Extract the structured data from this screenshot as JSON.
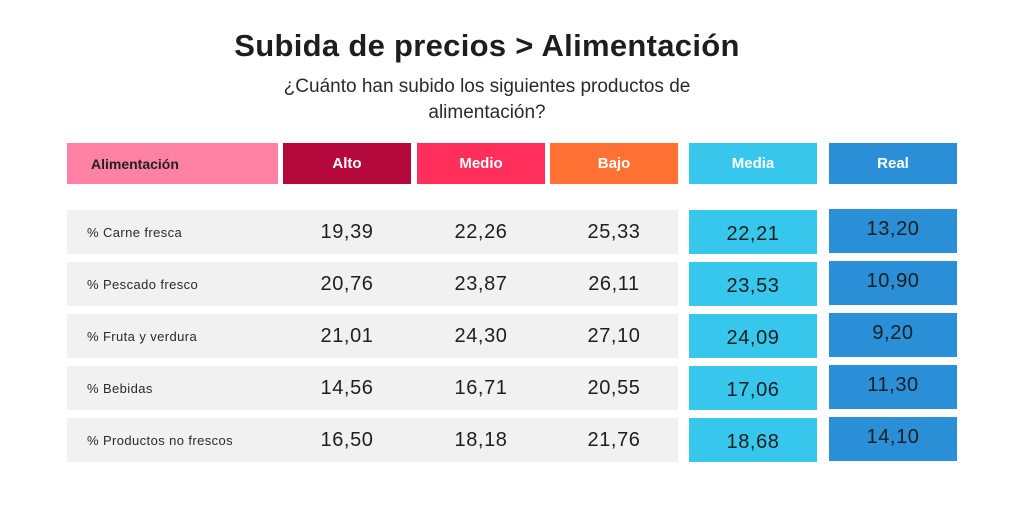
{
  "title": "Subida de precios > Alimentación",
  "subtitle": "¿Cuánto han subido los siguientes productos de alimentación?",
  "colors": {
    "alimentacion": "#ff82a4",
    "alto": "#b5093e",
    "medio": "#ff2e5a",
    "bajo": "#ff7033",
    "media": "#38c7ec",
    "real": "#2a8fd6",
    "row_band": "#f1f1f1"
  },
  "chart_data": {
    "type": "table",
    "columns": [
      "Alimentación",
      "Alto",
      "Medio",
      "Bajo",
      "Media",
      "Real"
    ],
    "rows": [
      {
        "label": "% Carne fresca",
        "values": [
          "19,39",
          "22,26",
          "25,33",
          "22,21",
          "13,20"
        ]
      },
      {
        "label": "% Pescado fresco",
        "values": [
          "20,76",
          "23,87",
          "26,11",
          "23,53",
          "10,90"
        ]
      },
      {
        "label": "% Fruta y verdura",
        "values": [
          "21,01",
          "24,30",
          "27,10",
          "24,09",
          "9,20"
        ]
      },
      {
        "label": "% Bebidas",
        "values": [
          "14,56",
          "16,71",
          "20,55",
          "17,06",
          "11,30"
        ]
      },
      {
        "label": "% Productos no frescos",
        "values": [
          "16,50",
          "18,18",
          "21,76",
          "18,68",
          "14,10"
        ]
      }
    ]
  }
}
